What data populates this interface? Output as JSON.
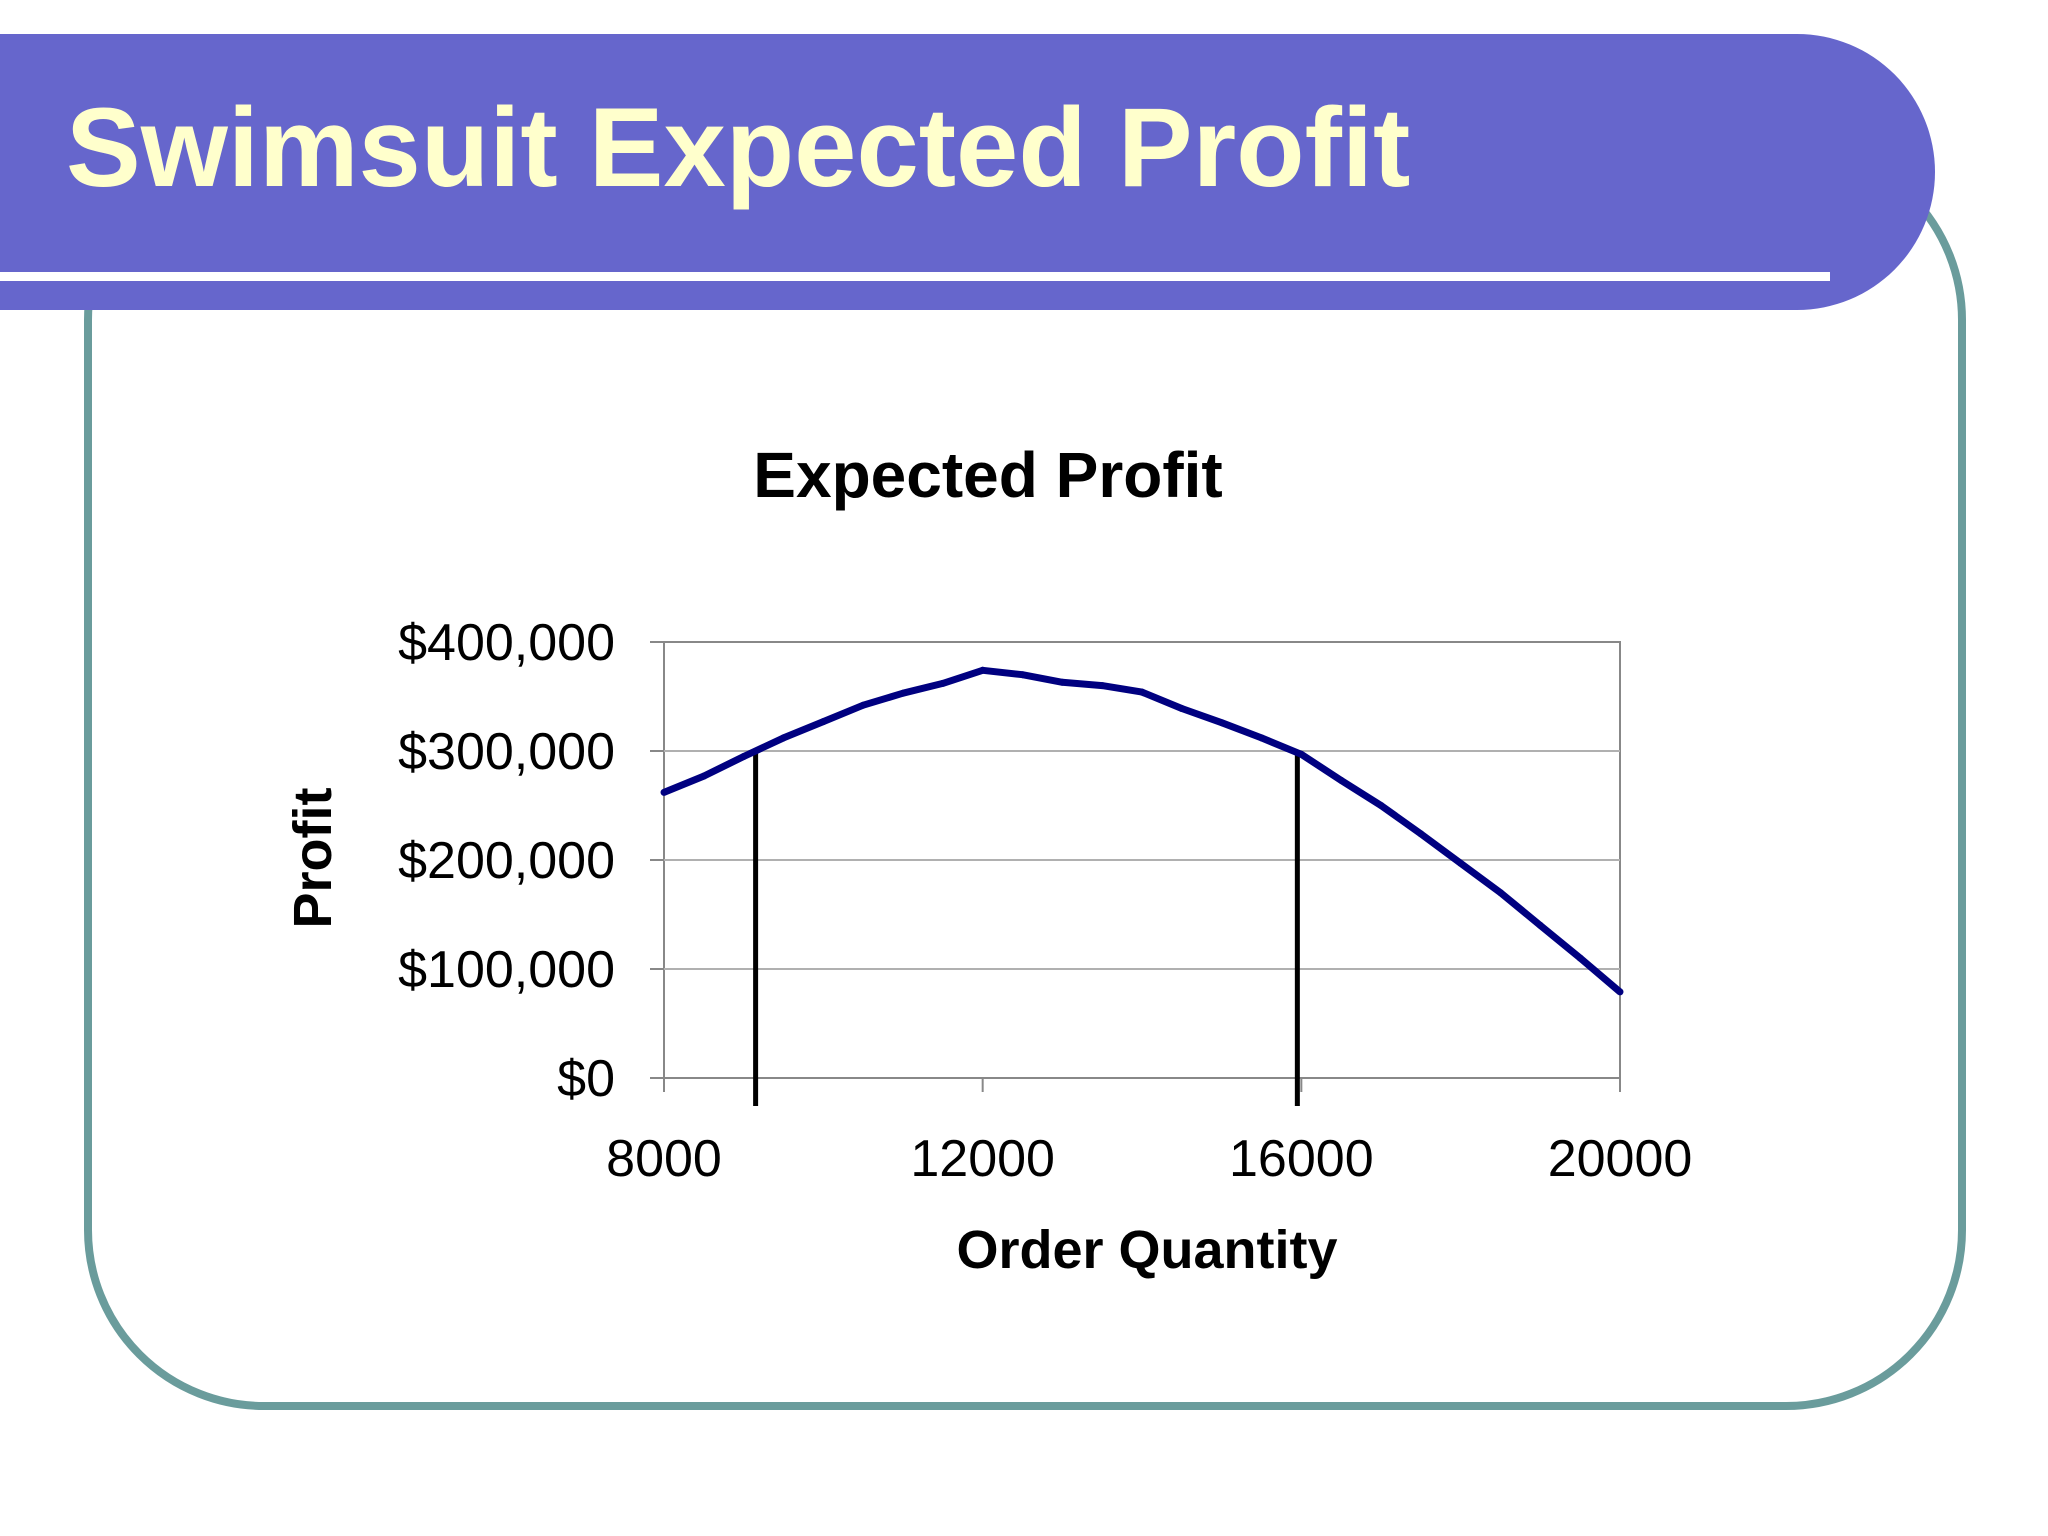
{
  "slide": {
    "title": "Swimsuit Expected Profit",
    "colors": {
      "title_bar": "#6666cc",
      "title_text": "#ffffcc",
      "frame_border": "#6a9c9c"
    }
  },
  "chart_data": {
    "type": "line",
    "title": "Expected Profit",
    "xlabel": "Order Quantity",
    "ylabel": "Profit",
    "xlim": [
      8000,
      20000
    ],
    "ylim": [
      0,
      400000
    ],
    "x_ticks": [
      {
        "value": 8000,
        "label": "8000"
      },
      {
        "value": 12000,
        "label": "12000"
      },
      {
        "value": 16000,
        "label": "16000"
      },
      {
        "value": 20000,
        "label": "20000"
      }
    ],
    "y_ticks": [
      {
        "value": 0,
        "label": "$0"
      },
      {
        "value": 100000,
        "label": "$100,000"
      },
      {
        "value": 200000,
        "label": "$200,000"
      },
      {
        "value": 300000,
        "label": "$300,000"
      },
      {
        "value": 400000,
        "label": "$400,000"
      }
    ],
    "grid": "horizontal",
    "series": [
      {
        "color": "#000080",
        "x": [
          8000,
          8500,
          9000,
          9500,
          10000,
          10500,
          11000,
          11500,
          12000,
          12500,
          13000,
          13500,
          14000,
          14500,
          15000,
          15500,
          16000,
          16500,
          17000,
          17500,
          18000,
          18500,
          19000,
          19500,
          20000
        ],
        "y": [
          262000,
          277000,
          295000,
          312000,
          327000,
          342000,
          353000,
          362000,
          374000,
          370000,
          363000,
          360000,
          354000,
          339000,
          326000,
          312000,
          297000,
          273000,
          250000,
          224000,
          197000,
          170000,
          140000,
          110000,
          79000
        ]
      }
    ],
    "reference_lines": [
      {
        "x": 9150,
        "color": "#000000"
      },
      {
        "x": 15950,
        "color": "#000000"
      }
    ]
  }
}
